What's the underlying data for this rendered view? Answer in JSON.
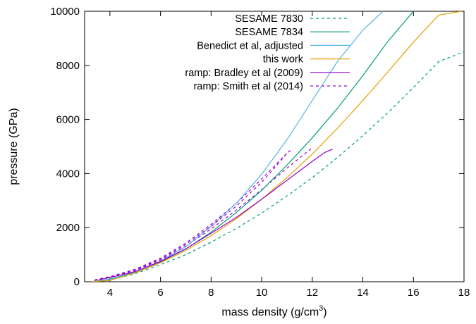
{
  "chart_data": {
    "type": "line",
    "title": "",
    "xlabel": "mass density (g/cm³)",
    "xlabel_base": "mass density (g/cm",
    "xlabel_sup": "3",
    "xlabel_tail": ")",
    "ylabel": "pressure (GPa)",
    "xlim": [
      3,
      18
    ],
    "ylim": [
      0,
      10000
    ],
    "x_ticks": [
      4,
      6,
      8,
      10,
      12,
      14,
      16,
      18
    ],
    "y_ticks": [
      0,
      2000,
      4000,
      6000,
      8000,
      10000
    ],
    "grid": false,
    "legend_position": "top-right",
    "series": [
      {
        "name": "SESAME 7830",
        "color": "#009e73",
        "dash": "dashed",
        "points": [
          [
            3.25,
            0
          ],
          [
            4,
            60
          ],
          [
            5,
            300
          ],
          [
            6,
            630
          ],
          [
            7,
            1000
          ],
          [
            8,
            1460
          ],
          [
            9,
            1970
          ],
          [
            10,
            2540
          ],
          [
            11,
            3170
          ],
          [
            12,
            3850
          ],
          [
            13,
            4600
          ],
          [
            14,
            5400
          ],
          [
            15,
            6260
          ],
          [
            16,
            7180
          ],
          [
            17,
            8140
          ],
          [
            18,
            8500
          ]
        ]
      },
      {
        "name": "SESAME 7834",
        "color": "#009e73",
        "dash": "solid",
        "points": [
          [
            3.25,
            0
          ],
          [
            4,
            90
          ],
          [
            5,
            360
          ],
          [
            6,
            730
          ],
          [
            7,
            1210
          ],
          [
            8,
            1830
          ],
          [
            9,
            2560
          ],
          [
            10,
            3380
          ],
          [
            11,
            4310
          ],
          [
            12,
            5320
          ],
          [
            13,
            6420
          ],
          [
            14,
            7620
          ],
          [
            15,
            8900
          ],
          [
            16,
            10000
          ]
        ]
      },
      {
        "name": "Benedict et al, adjusted",
        "color": "#56b4e9",
        "dash": "solid",
        "points": [
          [
            3.25,
            0
          ],
          [
            4,
            80
          ],
          [
            5,
            340
          ],
          [
            6,
            760
          ],
          [
            7,
            1300
          ],
          [
            8,
            2050
          ],
          [
            9,
            2900
          ],
          [
            10,
            3980
          ],
          [
            11,
            5250
          ],
          [
            12,
            6700
          ],
          [
            13,
            8150
          ],
          [
            14,
            9300
          ],
          [
            14.8,
            10000
          ]
        ]
      },
      {
        "name": "this work",
        "color": "#e69f00",
        "dash": "solid",
        "points": [
          [
            3.25,
            0
          ],
          [
            4,
            50
          ],
          [
            5,
            330
          ],
          [
            6,
            700
          ],
          [
            7,
            1160
          ],
          [
            8,
            1700
          ],
          [
            9,
            2330
          ],
          [
            10,
            3050
          ],
          [
            11,
            3850
          ],
          [
            12,
            4720
          ],
          [
            13,
            5680
          ],
          [
            14,
            6700
          ],
          [
            15,
            7770
          ],
          [
            16,
            8860
          ],
          [
            17,
            9860
          ],
          [
            17.9,
            10000
          ]
        ]
      },
      {
        "name": "ramp: Bradley et al (2009)",
        "color": "#9400d3",
        "dash": "solid",
        "points": [
          [
            3.55,
            70
          ],
          [
            4,
            150
          ],
          [
            5,
            380
          ],
          [
            6,
            750
          ],
          [
            7,
            1220
          ],
          [
            8,
            1790
          ],
          [
            9,
            2380
          ],
          [
            10,
            3050
          ],
          [
            11,
            3750
          ],
          [
            12,
            4450
          ],
          [
            12.5,
            4780
          ],
          [
            12.8,
            4900
          ]
        ]
      },
      {
        "name": "ramp: Smith et al (2014)",
        "color": "#9400d3",
        "dash": "dashed",
        "points": [
          [
            3.4,
            60
          ],
          [
            4,
            180
          ],
          [
            5,
            440
          ],
          [
            6,
            840
          ],
          [
            7,
            1380
          ],
          [
            8,
            2050
          ],
          [
            9,
            2800
          ],
          [
            10,
            3680
          ],
          [
            10.5,
            4200
          ],
          [
            11,
            4750
          ],
          [
            11.2,
            4900
          ]
        ]
      }
    ],
    "extra_curves": [
      {
        "color": "#9400d3",
        "dash": "dashed",
        "points": [
          [
            3.4,
            50
          ],
          [
            4,
            170
          ],
          [
            5,
            420
          ],
          [
            6,
            800
          ],
          [
            7,
            1320
          ],
          [
            8,
            1950
          ],
          [
            9,
            2650
          ],
          [
            10,
            3400
          ],
          [
            11,
            4200
          ],
          [
            12,
            4950
          ]
        ]
      },
      {
        "color": "#9400d3",
        "dash": "dashed",
        "points": [
          [
            3.4,
            70
          ],
          [
            4,
            190
          ],
          [
            5,
            460
          ],
          [
            6,
            870
          ],
          [
            7,
            1430
          ],
          [
            8,
            2120
          ],
          [
            9,
            2900
          ],
          [
            10,
            3800
          ],
          [
            11,
            4750
          ]
        ]
      }
    ]
  }
}
